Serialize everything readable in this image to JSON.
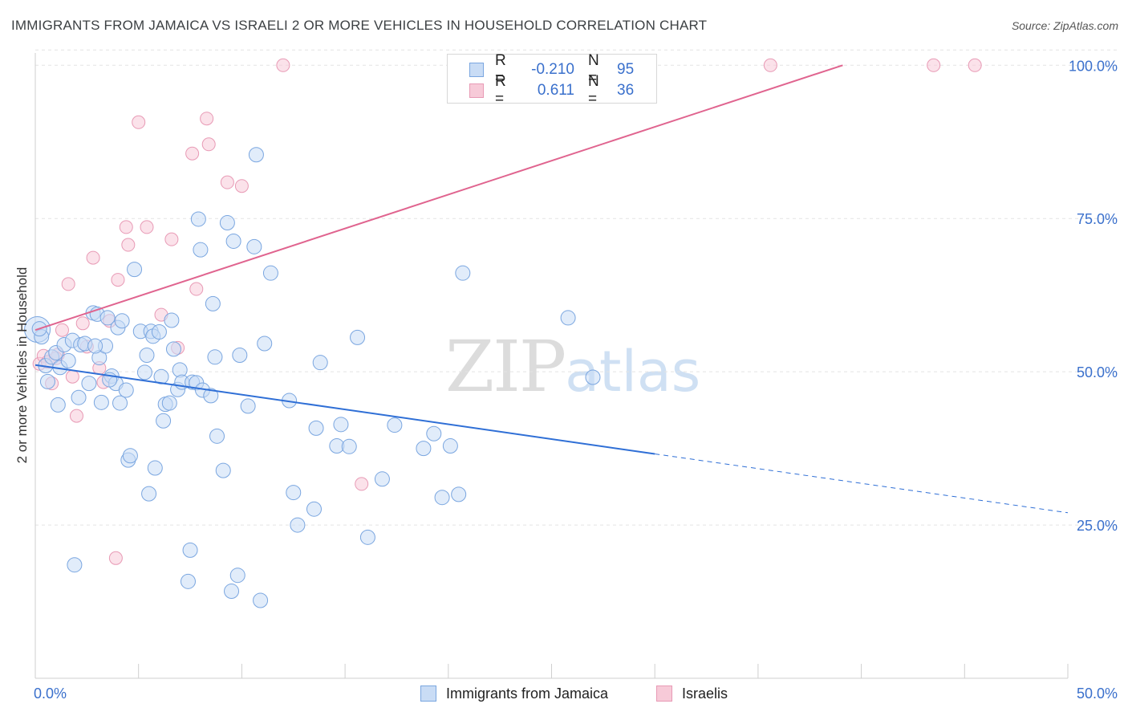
{
  "header": {
    "title": "IMMIGRANTS FROM JAMAICA VS ISRAELI 2 OR MORE VEHICLES IN HOUSEHOLD CORRELATION CHART",
    "source": "Source: ZipAtlas.com"
  },
  "watermark": {
    "zip": "ZIP",
    "atlas": "atlas"
  },
  "legend_top": [
    {
      "r_label": "R =",
      "r_value": "-0.210",
      "n_label": "N =",
      "n_value": "95"
    },
    {
      "r_label": "R =",
      "r_value": "0.611",
      "n_label": "N =",
      "n_value": "36"
    }
  ],
  "legend_bottom": [
    "Immigrants from Jamaica",
    "Israelis"
  ],
  "colors": {
    "jamaica_fill": "#c9dcf5",
    "jamaica_stroke": "#7aa6e0",
    "jamaica_line": "#2f6fd6",
    "israeli_fill": "#f7cad8",
    "israeli_stroke": "#e89ab5",
    "israeli_line": "#e0648f",
    "axis_text": "#3a70cc",
    "grid": "#e3e3e3"
  },
  "chart_data": {
    "type": "scatter",
    "title": "IMMIGRANTS FROM JAMAICA VS ISRAELI 2 OR MORE VEHICLES IN HOUSEHOLD CORRELATION CHART",
    "xlabel": "",
    "ylabel": "2 or more Vehicles in Household",
    "xlim": [
      0,
      50
    ],
    "ylim": [
      0,
      102
    ],
    "x_tick_labels": [
      "0.0%",
      "50.0%"
    ],
    "y_ticks": [
      25,
      50,
      75,
      100
    ],
    "y_tick_labels": [
      "25.0%",
      "50.0%",
      "75.0%",
      "100.0%"
    ],
    "grid": true,
    "legend_position": "bottom",
    "series": [
      {
        "name": "Immigrants from Jamaica",
        "r": -0.21,
        "n": 95,
        "trend": {
          "x0": 0,
          "y0": 51.1,
          "x1": 30,
          "y1": 36.6,
          "dashed_to_x": 50,
          "dashed_to_y": 27.0
        },
        "points": [
          [
            0.1,
            56.9
          ],
          [
            0.3,
            55.7
          ],
          [
            0.5,
            51.0
          ],
          [
            0.6,
            48.4
          ],
          [
            0.8,
            52.4
          ],
          [
            1.0,
            53.1
          ],
          [
            1.1,
            44.6
          ],
          [
            1.2,
            50.7
          ],
          [
            1.4,
            54.4
          ],
          [
            1.6,
            51.8
          ],
          [
            1.8,
            55.1
          ],
          [
            1.9,
            18.5
          ],
          [
            2.1,
            45.8
          ],
          [
            2.2,
            54.4
          ],
          [
            2.4,
            54.6
          ],
          [
            2.6,
            48.1
          ],
          [
            2.8,
            59.6
          ],
          [
            3.0,
            59.4
          ],
          [
            3.1,
            52.3
          ],
          [
            3.2,
            45.0
          ],
          [
            3.4,
            54.2
          ],
          [
            3.5,
            58.8
          ],
          [
            3.7,
            49.3
          ],
          [
            3.9,
            48.1
          ],
          [
            4.0,
            57.2
          ],
          [
            4.1,
            44.9
          ],
          [
            4.2,
            58.3
          ],
          [
            4.4,
            47.0
          ],
          [
            4.5,
            35.6
          ],
          [
            4.6,
            36.3
          ],
          [
            4.8,
            66.7
          ],
          [
            5.1,
            56.6
          ],
          [
            5.3,
            49.9
          ],
          [
            5.4,
            52.7
          ],
          [
            5.5,
            30.1
          ],
          [
            5.6,
            56.6
          ],
          [
            5.7,
            55.8
          ],
          [
            5.8,
            34.3
          ],
          [
            6.1,
            49.2
          ],
          [
            6.2,
            42.0
          ],
          [
            6.3,
            44.7
          ],
          [
            6.5,
            44.9
          ],
          [
            6.6,
            58.4
          ],
          [
            6.7,
            53.7
          ],
          [
            6.9,
            47.1
          ],
          [
            7.0,
            50.3
          ],
          [
            7.1,
            48.3
          ],
          [
            7.4,
            15.8
          ],
          [
            7.5,
            20.9
          ],
          [
            7.6,
            48.3
          ],
          [
            7.8,
            48.2
          ],
          [
            7.9,
            74.9
          ],
          [
            8.1,
            47.0
          ],
          [
            8.0,
            69.9
          ],
          [
            8.5,
            46.1
          ],
          [
            8.6,
            61.1
          ],
          [
            8.7,
            52.4
          ],
          [
            8.8,
            39.5
          ],
          [
            9.1,
            33.9
          ],
          [
            9.3,
            74.3
          ],
          [
            9.5,
            14.2
          ],
          [
            9.6,
            71.3
          ],
          [
            9.8,
            16.8
          ],
          [
            9.9,
            52.7
          ],
          [
            10.3,
            44.4
          ],
          [
            10.6,
            70.4
          ],
          [
            10.7,
            85.4
          ],
          [
            10.9,
            12.7
          ],
          [
            11.1,
            54.6
          ],
          [
            11.4,
            66.1
          ],
          [
            12.3,
            45.3
          ],
          [
            12.5,
            30.3
          ],
          [
            12.7,
            25.0
          ],
          [
            13.5,
            27.6
          ],
          [
            13.6,
            40.8
          ],
          [
            13.8,
            51.5
          ],
          [
            14.6,
            37.9
          ],
          [
            14.8,
            41.4
          ],
          [
            15.2,
            37.8
          ],
          [
            15.6,
            55.6
          ],
          [
            16.1,
            23.0
          ],
          [
            16.8,
            32.5
          ],
          [
            17.4,
            41.3
          ],
          [
            18.8,
            37.5
          ],
          [
            19.3,
            39.9
          ],
          [
            19.7,
            29.5
          ],
          [
            20.1,
            37.9
          ],
          [
            20.5,
            30.0
          ],
          [
            20.7,
            66.1
          ],
          [
            25.8,
            58.8
          ],
          [
            27.0,
            49.1
          ],
          [
            0.2,
            57.0
          ],
          [
            2.9,
            54.2
          ],
          [
            3.6,
            48.7
          ],
          [
            6.0,
            56.5
          ]
        ]
      },
      {
        "name": "Israelis",
        "r": 0.611,
        "n": 36,
        "trend": {
          "x0": 0,
          "y0": 56.8,
          "x1": 39.1,
          "y1": 100.0
        },
        "points": [
          [
            0.2,
            51.3
          ],
          [
            0.4,
            52.6
          ],
          [
            0.6,
            51.6
          ],
          [
            0.8,
            48.1
          ],
          [
            1.1,
            52.8
          ],
          [
            1.3,
            56.8
          ],
          [
            1.6,
            64.3
          ],
          [
            1.8,
            49.2
          ],
          [
            2.0,
            42.8
          ],
          [
            2.3,
            57.9
          ],
          [
            2.5,
            54.1
          ],
          [
            2.8,
            68.6
          ],
          [
            3.1,
            50.6
          ],
          [
            3.3,
            48.3
          ],
          [
            3.6,
            58.3
          ],
          [
            3.9,
            19.6
          ],
          [
            4.0,
            65.0
          ],
          [
            4.4,
            73.6
          ],
          [
            4.5,
            70.7
          ],
          [
            5.0,
            90.7
          ],
          [
            5.4,
            73.6
          ],
          [
            6.1,
            59.3
          ],
          [
            6.6,
            71.6
          ],
          [
            6.9,
            53.9
          ],
          [
            7.6,
            85.6
          ],
          [
            7.8,
            63.5
          ],
          [
            8.3,
            91.3
          ],
          [
            8.4,
            87.1
          ],
          [
            9.3,
            80.9
          ],
          [
            10.0,
            80.3
          ],
          [
            12.0,
            100.0
          ],
          [
            15.8,
            31.7
          ],
          [
            35.6,
            100.0
          ],
          [
            43.5,
            100.0
          ],
          [
            45.5,
            100.0
          ],
          [
            1.0,
            52.2
          ]
        ]
      }
    ]
  }
}
